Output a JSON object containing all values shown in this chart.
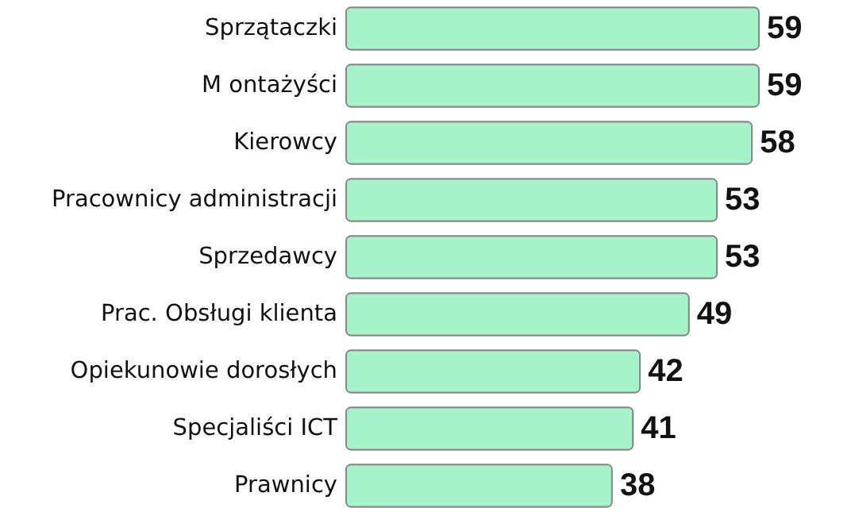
{
  "chart_data": {
    "type": "bar",
    "orientation": "horizontal",
    "categories": [
      "Sprzątaczki",
      "M ontażyści",
      "Kierowcy",
      "Pracownicy administracji",
      "Sprzedawcy",
      "Prac. Obsługi klienta",
      "Opiekunowie dorosłych",
      "Specjaliści ICT",
      "Prawnicy"
    ],
    "values": [
      59,
      59,
      58,
      53,
      53,
      49,
      42,
      41,
      38
    ],
    "color": "#a6f2c9",
    "data_labels": true
  }
}
